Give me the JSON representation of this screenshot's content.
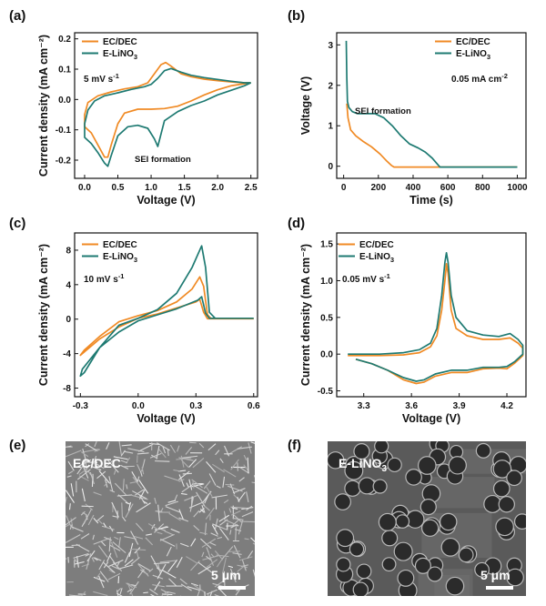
{
  "colors": {
    "ec_dec": "#f08a24",
    "e_lino3": "#1e7a72",
    "axis": "#111111"
  },
  "chart_data": [
    {
      "panel": "(a)",
      "type": "line",
      "xlabel": "Voltage (V)",
      "ylabel": "Current density (mA cm⁻²)",
      "xlim": [
        -0.15,
        2.6
      ],
      "ylim": [
        -0.26,
        0.22
      ],
      "xticks": [
        0.0,
        0.5,
        1.0,
        1.5,
        2.0,
        2.5
      ],
      "yticks": [
        -0.2,
        -0.1,
        0.0,
        0.1,
        0.2
      ],
      "xtick_labels": [
        "0.0",
        "0.5",
        "1.0",
        "1.5",
        "2.0",
        "2.5"
      ],
      "ytick_labels": [
        "-0.2",
        "-0.1",
        "0.0",
        "0.1",
        "0.2"
      ],
      "legend": [
        {
          "name": "EC/DEC",
          "sub": ""
        },
        {
          "name": "E-LiNO",
          "sub": "3"
        }
      ],
      "condition": {
        "text": "5 mV s",
        "sup": "-1"
      },
      "annotation": "SEI formation",
      "series": [
        {
          "name": "EC/DEC",
          "points": [
            [
              2.5,
              0.055
            ],
            [
              2.4,
              0.052
            ],
            [
              2.2,
              0.045
            ],
            [
              2.0,
              0.032
            ],
            [
              1.8,
              0.015
            ],
            [
              1.6,
              -0.005
            ],
            [
              1.4,
              -0.022
            ],
            [
              1.2,
              -0.03
            ],
            [
              1.0,
              -0.032
            ],
            [
              0.8,
              -0.032
            ],
            [
              0.6,
              -0.045
            ],
            [
              0.5,
              -0.08
            ],
            [
              0.4,
              -0.15
            ],
            [
              0.35,
              -0.19
            ],
            [
              0.3,
              -0.19
            ],
            [
              0.2,
              -0.15
            ],
            [
              0.1,
              -0.11
            ],
            [
              0.0,
              -0.09
            ],
            [
              0.0,
              -0.05
            ],
            [
              0.05,
              -0.01
            ],
            [
              0.2,
              0.012
            ],
            [
              0.4,
              0.025
            ],
            [
              0.6,
              0.035
            ],
            [
              0.8,
              0.042
            ],
            [
              0.95,
              0.055
            ],
            [
              1.05,
              0.085
            ],
            [
              1.15,
              0.115
            ],
            [
              1.22,
              0.122
            ],
            [
              1.3,
              0.11
            ],
            [
              1.45,
              0.085
            ],
            [
              1.6,
              0.075
            ],
            [
              1.8,
              0.067
            ],
            [
              2.0,
              0.062
            ],
            [
              2.2,
              0.058
            ],
            [
              2.4,
              0.055
            ],
            [
              2.5,
              0.055
            ]
          ]
        },
        {
          "name": "E-LiNO3",
          "points": [
            [
              2.5,
              0.055
            ],
            [
              2.4,
              0.045
            ],
            [
              2.2,
              0.03
            ],
            [
              2.0,
              0.015
            ],
            [
              1.8,
              -0.005
            ],
            [
              1.6,
              -0.02
            ],
            [
              1.4,
              -0.04
            ],
            [
              1.2,
              -0.07
            ],
            [
              1.1,
              -0.155
            ],
            [
              1.05,
              -0.13
            ],
            [
              0.95,
              -0.095
            ],
            [
              0.8,
              -0.085
            ],
            [
              0.65,
              -0.09
            ],
            [
              0.5,
              -0.12
            ],
            [
              0.4,
              -0.185
            ],
            [
              0.35,
              -0.22
            ],
            [
              0.3,
              -0.21
            ],
            [
              0.2,
              -0.175
            ],
            [
              0.1,
              -0.145
            ],
            [
              0.0,
              -0.125
            ],
            [
              0.0,
              -0.08
            ],
            [
              0.05,
              -0.035
            ],
            [
              0.15,
              -0.005
            ],
            [
              0.3,
              0.012
            ],
            [
              0.5,
              0.022
            ],
            [
              0.7,
              0.033
            ],
            [
              0.9,
              0.042
            ],
            [
              1.0,
              0.05
            ],
            [
              1.1,
              0.07
            ],
            [
              1.2,
              0.095
            ],
            [
              1.3,
              0.102
            ],
            [
              1.45,
              0.09
            ],
            [
              1.6,
              0.08
            ],
            [
              1.8,
              0.072
            ],
            [
              2.0,
              0.066
            ],
            [
              2.2,
              0.06
            ],
            [
              2.4,
              0.055
            ],
            [
              2.5,
              0.055
            ]
          ]
        }
      ]
    },
    {
      "panel": "(b)",
      "type": "line",
      "xlabel": "Time (s)",
      "ylabel": "Voltage (V)",
      "xlim": [
        -40,
        1050
      ],
      "ylim": [
        -0.3,
        3.3
      ],
      "xticks": [
        0,
        200,
        400,
        600,
        800,
        1000
      ],
      "yticks": [
        0,
        1,
        2,
        3
      ],
      "xtick_labels": [
        "0",
        "200",
        "400",
        "600",
        "800",
        "1000"
      ],
      "ytick_labels": [
        "0",
        "1",
        "2",
        "3"
      ],
      "legend": [
        {
          "name": "EC/DEC",
          "sub": ""
        },
        {
          "name": "E-LiNO",
          "sub": "3"
        }
      ],
      "condition": {
        "text": "0.05 mA cm",
        "sup": "-2"
      },
      "annotation": "SEI formation",
      "series": [
        {
          "name": "EC/DEC",
          "points": [
            [
              18,
              1.55
            ],
            [
              25,
              1.2
            ],
            [
              40,
              0.9
            ],
            [
              70,
              0.75
            ],
            [
              110,
              0.62
            ],
            [
              160,
              0.48
            ],
            [
              210,
              0.3
            ],
            [
              250,
              0.12
            ],
            [
              275,
              0.02
            ],
            [
              290,
              -0.02
            ],
            [
              400,
              -0.02
            ],
            [
              600,
              -0.02
            ],
            [
              800,
              -0.02
            ],
            [
              1000,
              -0.02
            ]
          ]
        },
        {
          "name": "E-LiNO3",
          "points": [
            [
              15,
              3.1
            ],
            [
              18,
              2.2
            ],
            [
              22,
              1.6
            ],
            [
              30,
              1.45
            ],
            [
              50,
              1.35
            ],
            [
              80,
              1.3
            ],
            [
              120,
              1.3
            ],
            [
              180,
              1.3
            ],
            [
              230,
              1.2
            ],
            [
              280,
              1.0
            ],
            [
              330,
              0.75
            ],
            [
              380,
              0.55
            ],
            [
              430,
              0.45
            ],
            [
              470,
              0.35
            ],
            [
              510,
              0.2
            ],
            [
              540,
              0.05
            ],
            [
              555,
              -0.02
            ],
            [
              700,
              -0.02
            ],
            [
              1000,
              -0.02
            ]
          ]
        }
      ]
    },
    {
      "panel": "(c)",
      "type": "line",
      "xlabel": "Voltage (V)",
      "ylabel": "Current density (mA cm⁻²)",
      "xlim": [
        -0.33,
        0.62
      ],
      "ylim": [
        -9,
        10
      ],
      "xticks": [
        -0.3,
        0.0,
        0.3,
        0.6
      ],
      "yticks": [
        -8,
        -4,
        0,
        4,
        8
      ],
      "xtick_labels": [
        "-0.3",
        "0.0",
        "0.3",
        "0.6"
      ],
      "ytick_labels": [
        "-8",
        "-4",
        "0",
        "4",
        "8"
      ],
      "legend": [
        {
          "name": "EC/DEC",
          "sub": ""
        },
        {
          "name": "E-LiNO",
          "sub": "3"
        }
      ],
      "condition": {
        "text": "10 mV s",
        "sup": "-1"
      },
      "series": [
        {
          "name": "EC/DEC",
          "points": [
            [
              0.6,
              0.05
            ],
            [
              0.45,
              0.05
            ],
            [
              0.36,
              0.05
            ],
            [
              0.34,
              0.8
            ],
            [
              0.32,
              2.3
            ],
            [
              0.3,
              2.0
            ],
            [
              0.2,
              1.3
            ],
            [
              0.1,
              0.6
            ],
            [
              0.0,
              0.1
            ],
            [
              -0.1,
              -0.9
            ],
            [
              -0.2,
              -2.3
            ],
            [
              -0.3,
              -4.2
            ],
            [
              -0.28,
              -3.6
            ],
            [
              -0.2,
              -2.0
            ],
            [
              -0.1,
              -0.3
            ],
            [
              0.0,
              0.4
            ],
            [
              0.1,
              1.0
            ],
            [
              0.2,
              2.0
            ],
            [
              0.28,
              3.5
            ],
            [
              0.32,
              4.9
            ],
            [
              0.34,
              3.8
            ],
            [
              0.36,
              0.5
            ],
            [
              0.38,
              0.05
            ],
            [
              0.6,
              0.05
            ]
          ]
        },
        {
          "name": "E-LiNO3",
          "points": [
            [
              0.6,
              0.1
            ],
            [
              0.45,
              0.1
            ],
            [
              0.37,
              0.1
            ],
            [
              0.35,
              0.7
            ],
            [
              0.33,
              2.6
            ],
            [
              0.31,
              2.2
            ],
            [
              0.2,
              1.2
            ],
            [
              0.1,
              0.5
            ],
            [
              0.0,
              -0.2
            ],
            [
              -0.1,
              -1.5
            ],
            [
              -0.2,
              -3.3
            ],
            [
              -0.29,
              -5.8
            ],
            [
              -0.3,
              -6.6
            ],
            [
              -0.28,
              -6.2
            ],
            [
              -0.2,
              -3.3
            ],
            [
              -0.1,
              -0.7
            ],
            [
              0.0,
              0.1
            ],
            [
              0.1,
              1.1
            ],
            [
              0.2,
              3.0
            ],
            [
              0.28,
              6.0
            ],
            [
              0.33,
              8.5
            ],
            [
              0.35,
              6.0
            ],
            [
              0.37,
              0.8
            ],
            [
              0.4,
              0.1
            ],
            [
              0.6,
              0.1
            ]
          ]
        }
      ]
    },
    {
      "panel": "(d)",
      "type": "line",
      "xlabel": "Voltage (V)",
      "ylabel": "Current density (mA cm⁻²)",
      "xlim": [
        3.13,
        4.32
      ],
      "ylim": [
        -0.58,
        1.65
      ],
      "xticks": [
        3.3,
        3.6,
        3.9,
        4.2
      ],
      "yticks": [
        -0.5,
        0.0,
        0.5,
        1.0,
        1.5
      ],
      "xtick_labels": [
        "3.3",
        "3.6",
        "3.9",
        "4.2"
      ],
      "ytick_labels": [
        "-0.5",
        "0.0",
        "0.5",
        "1.0",
        "1.5"
      ],
      "legend": [
        {
          "name": "EC/DEC",
          "sub": ""
        },
        {
          "name": "E-LiNO",
          "sub": "3"
        }
      ],
      "condition": {
        "text": "0.05 mV s",
        "sup": "-1"
      },
      "series": [
        {
          "name": "EC/DEC",
          "points": [
            [
              3.2,
              -0.02
            ],
            [
              3.4,
              -0.02
            ],
            [
              3.55,
              -0.01
            ],
            [
              3.65,
              0.02
            ],
            [
              3.72,
              0.1
            ],
            [
              3.76,
              0.25
            ],
            [
              3.79,
              0.6
            ],
            [
              3.81,
              1.0
            ],
            [
              3.82,
              1.23
            ],
            [
              3.83,
              1.1
            ],
            [
              3.85,
              0.6
            ],
            [
              3.88,
              0.35
            ],
            [
              3.95,
              0.25
            ],
            [
              4.05,
              0.2
            ],
            [
              4.15,
              0.2
            ],
            [
              4.22,
              0.22
            ],
            [
              4.27,
              0.15
            ],
            [
              4.3,
              0.08
            ],
            [
              4.3,
              -0.02
            ],
            [
              4.25,
              -0.12
            ],
            [
              4.2,
              -0.2
            ],
            [
              4.15,
              -0.19
            ],
            [
              4.05,
              -0.2
            ],
            [
              3.95,
              -0.25
            ],
            [
              3.85,
              -0.25
            ],
            [
              3.75,
              -0.3
            ],
            [
              3.68,
              -0.38
            ],
            [
              3.63,
              -0.4
            ],
            [
              3.55,
              -0.35
            ],
            [
              3.45,
              -0.22
            ],
            [
              3.35,
              -0.13
            ],
            [
              3.25,
              -0.07
            ]
          ]
        },
        {
          "name": "E-LiNO3",
          "points": [
            [
              3.2,
              0.0
            ],
            [
              3.4,
              0.0
            ],
            [
              3.55,
              0.02
            ],
            [
              3.65,
              0.06
            ],
            [
              3.72,
              0.15
            ],
            [
              3.76,
              0.35
            ],
            [
              3.79,
              0.8
            ],
            [
              3.81,
              1.25
            ],
            [
              3.82,
              1.38
            ],
            [
              3.83,
              1.25
            ],
            [
              3.85,
              0.8
            ],
            [
              3.88,
              0.5
            ],
            [
              3.95,
              0.32
            ],
            [
              4.05,
              0.26
            ],
            [
              4.15,
              0.24
            ],
            [
              4.22,
              0.28
            ],
            [
              4.27,
              0.2
            ],
            [
              4.3,
              0.12
            ],
            [
              4.3,
              0.0
            ],
            [
              4.25,
              -0.1
            ],
            [
              4.2,
              -0.17
            ],
            [
              4.15,
              -0.18
            ],
            [
              4.05,
              -0.18
            ],
            [
              3.95,
              -0.22
            ],
            [
              3.85,
              -0.22
            ],
            [
              3.75,
              -0.27
            ],
            [
              3.68,
              -0.35
            ],
            [
              3.63,
              -0.37
            ],
            [
              3.55,
              -0.32
            ],
            [
              3.45,
              -0.22
            ],
            [
              3.35,
              -0.13
            ],
            [
              3.25,
              -0.07
            ]
          ]
        }
      ]
    }
  ],
  "images": [
    {
      "panel": "(e)",
      "label": "EC/DEC",
      "scalebar": "5 μm"
    },
    {
      "panel": "(f)",
      "label": "E-LiNO",
      "label_sub": "3",
      "scalebar": "5 μm"
    }
  ]
}
